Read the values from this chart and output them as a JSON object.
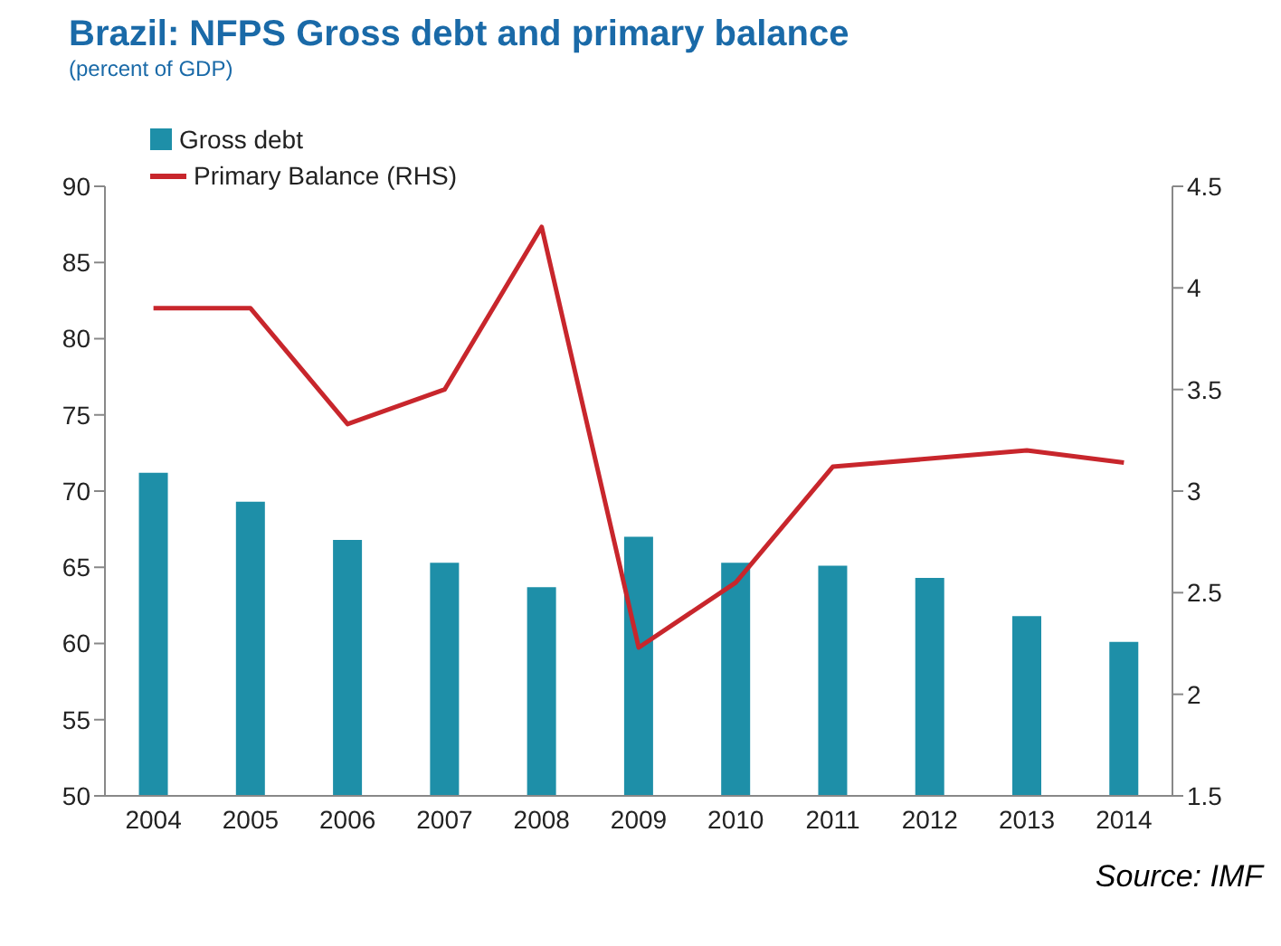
{
  "chart_data": {
    "type": "bar",
    "title": "Brazil: NFPS Gross debt and primary balance",
    "subtitle": "(percent of GDP)",
    "categories": [
      "2004",
      "2005",
      "2006",
      "2007",
      "2008",
      "2009",
      "2010",
      "2011",
      "2012",
      "2013",
      "2014"
    ],
    "series": [
      {
        "name": "Gross debt",
        "color": "#1e8fa8",
        "values": [
          71.2,
          69.3,
          66.8,
          65.3,
          63.7,
          67.0,
          65.3,
          65.1,
          64.3,
          61.8,
          60.1
        ]
      },
      {
        "name": "Primary Balance (RHS)",
        "type": "line",
        "axis": "y2",
        "color": "#c8262c",
        "values": [
          3.9,
          3.9,
          3.33,
          3.5,
          4.3,
          2.23,
          2.55,
          3.12,
          3.16,
          3.2,
          3.14
        ]
      }
    ],
    "ylim": [
      50,
      90
    ],
    "yticks": [
      50,
      55,
      60,
      65,
      70,
      75,
      80,
      85,
      90
    ],
    "y2lim": [
      1.5,
      4.5
    ],
    "y2ticks": [
      1.5,
      2,
      2.5,
      3,
      3.5,
      4,
      4.5
    ],
    "grid": false,
    "legend": "top left",
    "annotations": [
      "Source: IMF"
    ]
  }
}
